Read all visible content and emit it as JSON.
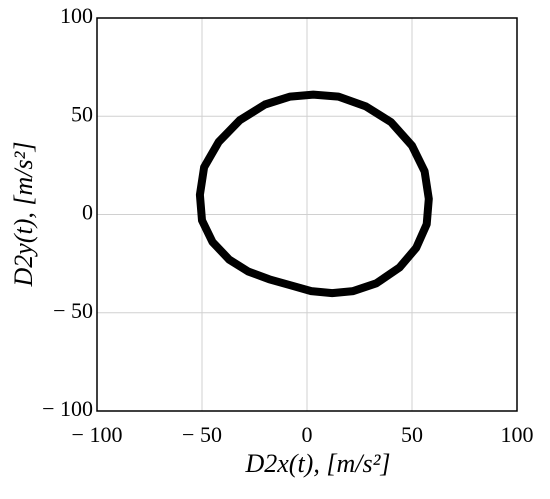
{
  "chart_data": {
    "type": "line",
    "x_label": "D2x(t), [m/s²]",
    "y_label": "D2y(t), [m/s²]",
    "series": [
      {
        "color": "#000000",
        "x": [
          3,
          15,
          28,
          40,
          50,
          56,
          58,
          57,
          52,
          44,
          33,
          22,
          12,
          2,
          -8,
          -18,
          -28,
          -37,
          -45,
          -50,
          -51,
          -49,
          -42,
          -32,
          -20,
          -8,
          3
        ],
        "y": [
          61,
          60,
          55,
          47,
          35,
          22,
          8,
          -5,
          -17,
          -27,
          -35,
          -39,
          -40,
          -39,
          -36,
          -33,
          -29,
          -23,
          -14,
          -3,
          10,
          24,
          37,
          48,
          56,
          60,
          61
        ]
      }
    ],
    "xlim": [
      -100,
      100
    ],
    "ylim": [
      -100,
      100
    ],
    "xticks": [
      {
        "value": -100,
        "label": "− 100"
      },
      {
        "value": -50,
        "label": "− 50"
      },
      0,
      50,
      100
    ],
    "yticks": [
      {
        "value": -100,
        "label": "− 100"
      },
      {
        "value": -50,
        "label": "− 50"
      },
      0,
      50,
      100
    ],
    "grid": true
  }
}
